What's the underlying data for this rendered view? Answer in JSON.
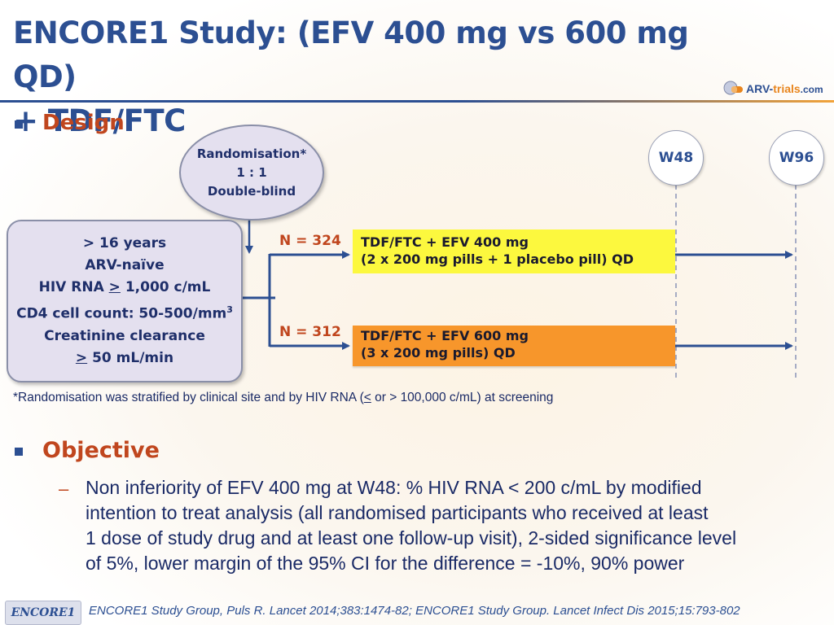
{
  "title": {
    "line1": "ENCORE1 Study: (EFV 400 mg vs 600 mg QD)",
    "line2": "+ TDF/FTC"
  },
  "logo": {
    "arv": "ARV-",
    "trials": "trials",
    "com": ".com",
    "icon": "pill-logo-icon"
  },
  "design": {
    "heading": "Design",
    "randomisation": {
      "line1": "Randomisation*",
      "line2": "1 : 1",
      "line3": "Double-blind"
    },
    "eligibility": {
      "line1": "> 16 years",
      "line2": "ARV-naïve",
      "line3_pre": "HIV RNA ",
      "line3_sym": ">",
      "line3_post": " 1,000 c/mL",
      "line4_main": "CD4 cell count: 50-500/mm",
      "line4_sup": "3",
      "line5": "Creatinine clearance",
      "line6_sym": ">",
      "line6_post": " 50 mL/min"
    },
    "weeks": [
      "W48",
      "W96"
    ],
    "arms": [
      {
        "n": "N = 324",
        "line1": "TDF/FTC + EFV 400 mg",
        "line2": "(2 x 200 mg pills + 1 placebo pill) QD",
        "color": "#fcf83e"
      },
      {
        "n": "N = 312",
        "line1": "TDF/FTC + EFV 600 mg",
        "line2": "(3 x 200 mg pills) QD",
        "color": "#f7962b"
      }
    ],
    "footnote_pre": "*Randomisation was stratified by clinical site and by HIV RNA (",
    "footnote_sym": "<",
    "footnote_post": " or > 100,000 c/mL) at screening"
  },
  "objective": {
    "heading": "Objective",
    "dash": "–",
    "lines": [
      "Non inferiority of EFV 400 mg at W48: % HIV RNA < 200 c/mL by modified",
      "intention to treat analysis (all randomised participants who received at least",
      "1 dose of study drug and at least one follow-up visit), 2-sided significance level",
      "of 5%, lower margin of the 95% CI for the difference = -10%, 90% power"
    ]
  },
  "footer": {
    "badge": "ENCORE1",
    "reference": "ENCORE1 Study Group, Puls R. Lancet 2014;383:1474-82; ENCORE1 Study Group. Lancet Infect Dis 2015;15:793-802"
  },
  "colors": {
    "title_blue": "#2c4f92",
    "heading_red": "#c0461e",
    "arm1_yellow": "#fcf83e",
    "arm2_orange": "#f7962b"
  }
}
